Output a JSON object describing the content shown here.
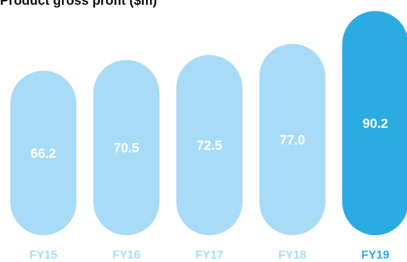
{
  "chart_data": {
    "type": "bar",
    "title": "Product gross profit ($m)",
    "categories": [
      "FY15",
      "FY16",
      "FY17",
      "FY18",
      "FY19"
    ],
    "values": [
      66.2,
      70.5,
      72.5,
      77.0,
      90.2
    ],
    "value_labels": [
      "66.2",
      "70.5",
      "72.5",
      "77.0",
      "90.2"
    ],
    "highlight_index": 4,
    "xlabel": "",
    "ylabel": "",
    "ylim": [
      0,
      90.2
    ],
    "grid": false,
    "legend": "none"
  },
  "colors": {
    "bar": "#a8dcf6",
    "bar_highlight": "#2aace2",
    "tick": "#a8dcf6",
    "tick_highlight": "#2aace2",
    "value_text": "#ffffff"
  }
}
